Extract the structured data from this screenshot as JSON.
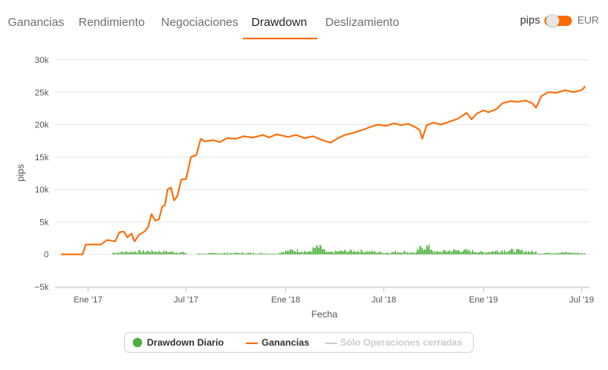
{
  "tabs": [
    {
      "label": "Ganancias",
      "active": false
    },
    {
      "label": "Rendimiento",
      "active": false
    },
    {
      "label": "Negociaciones",
      "active": false
    },
    {
      "label": "Drawdown",
      "active": true
    },
    {
      "label": "Deslizamiento",
      "active": false
    }
  ],
  "unit_toggle": {
    "left_label": "pips",
    "right_label": "EUR",
    "state": "on"
  },
  "colors": {
    "accent": "#ff6a00",
    "gains_line": "#ff6a00",
    "drawdown_bars": "#4caf3b",
    "closed_ops_line": "#cccccc",
    "grid": "#e6e6e6"
  },
  "legend": {
    "items": [
      {
        "label": "Drawdown Diario",
        "symbol": "dot",
        "color": "#4caf3b",
        "visible": true
      },
      {
        "label": "Ganancias",
        "symbol": "line",
        "color": "#ff6a00",
        "visible": true
      },
      {
        "label": "Sólo Operaciones cerradas",
        "symbol": "line",
        "color": "#cccccc",
        "visible": false
      }
    ]
  },
  "chart_data": {
    "type": "line",
    "title": "",
    "xlabel": "Fecha",
    "ylabel": "pips",
    "xlim": [
      "2016-11-01",
      "2019-07-15"
    ],
    "ylim": [
      -5000,
      30000
    ],
    "y_ticks": [
      -5000,
      0,
      5000,
      10000,
      15000,
      20000,
      25000,
      30000
    ],
    "y_tick_labels": [
      "−5k",
      "0",
      "5k",
      "10k",
      "15k",
      "20k",
      "25k",
      "30k"
    ],
    "x_ticks": [
      {
        "date": "2017-01-01",
        "label": "Ene '17"
      },
      {
        "date": "2017-07-01",
        "label": "Jul '17"
      },
      {
        "date": "2018-01-01",
        "label": "Ene '18"
      },
      {
        "date": "2018-07-01",
        "label": "Jul '18"
      },
      {
        "date": "2019-01-01",
        "label": "Ene '19"
      },
      {
        "date": "2019-07-01",
        "label": "Jul '19"
      }
    ],
    "grid": true,
    "legend_position": "bottom",
    "series": [
      {
        "name": "Ganancias",
        "type": "line",
        "points": [
          [
            "2016-11-12",
            0
          ],
          [
            "2016-12-01",
            0
          ],
          [
            "2016-12-22",
            0
          ],
          [
            "2016-12-28",
            1500
          ],
          [
            "2017-01-15",
            1500
          ],
          [
            "2017-01-25",
            1500
          ],
          [
            "2017-02-05",
            2200
          ],
          [
            "2017-02-20",
            2000
          ],
          [
            "2017-02-28",
            3400
          ],
          [
            "2017-03-08",
            3500
          ],
          [
            "2017-03-15",
            2600
          ],
          [
            "2017-03-22",
            3200
          ],
          [
            "2017-03-28",
            2000
          ],
          [
            "2017-04-05",
            3000
          ],
          [
            "2017-04-15",
            3500
          ],
          [
            "2017-04-22",
            4200
          ],
          [
            "2017-04-28",
            6200
          ],
          [
            "2017-05-05",
            5200
          ],
          [
            "2017-05-12",
            5400
          ],
          [
            "2017-05-18",
            7400
          ],
          [
            "2017-05-23",
            7600
          ],
          [
            "2017-05-28",
            10000
          ],
          [
            "2017-06-03",
            10300
          ],
          [
            "2017-06-09",
            8300
          ],
          [
            "2017-06-15",
            9000
          ],
          [
            "2017-06-22",
            11500
          ],
          [
            "2017-07-01",
            11600
          ],
          [
            "2017-07-10",
            15000
          ],
          [
            "2017-07-20",
            15300
          ],
          [
            "2017-07-28",
            17800
          ],
          [
            "2017-08-05",
            17400
          ],
          [
            "2017-08-20",
            17600
          ],
          [
            "2017-09-01",
            17300
          ],
          [
            "2017-09-15",
            17900
          ],
          [
            "2017-10-01",
            17800
          ],
          [
            "2017-10-15",
            18200
          ],
          [
            "2017-11-01",
            18000
          ],
          [
            "2017-11-20",
            18400
          ],
          [
            "2017-12-01",
            18000
          ],
          [
            "2017-12-15",
            18500
          ],
          [
            "2018-01-05",
            18100
          ],
          [
            "2018-01-20",
            18400
          ],
          [
            "2018-02-05",
            17900
          ],
          [
            "2018-02-20",
            18200
          ],
          [
            "2018-03-10",
            17600
          ],
          [
            "2018-03-25",
            17200
          ],
          [
            "2018-04-05",
            17800
          ],
          [
            "2018-04-20",
            18400
          ],
          [
            "2018-05-05",
            18700
          ],
          [
            "2018-05-20",
            19100
          ],
          [
            "2018-06-05",
            19600
          ],
          [
            "2018-06-20",
            20000
          ],
          [
            "2018-07-05",
            19800
          ],
          [
            "2018-07-20",
            20200
          ],
          [
            "2018-08-01",
            19900
          ],
          [
            "2018-08-15",
            20100
          ],
          [
            "2018-08-28",
            19600
          ],
          [
            "2018-09-05",
            19200
          ],
          [
            "2018-09-10",
            17800
          ],
          [
            "2018-09-18",
            19900
          ],
          [
            "2018-10-01",
            20300
          ],
          [
            "2018-10-15",
            20000
          ],
          [
            "2018-11-01",
            20500
          ],
          [
            "2018-11-15",
            20900
          ],
          [
            "2018-12-01",
            21800
          ],
          [
            "2018-12-10",
            20800
          ],
          [
            "2018-12-20",
            21700
          ],
          [
            "2019-01-01",
            22200
          ],
          [
            "2019-01-10",
            21900
          ],
          [
            "2019-01-25",
            22400
          ],
          [
            "2019-02-05",
            23300
          ],
          [
            "2019-02-20",
            23600
          ],
          [
            "2019-03-05",
            23500
          ],
          [
            "2019-03-20",
            23700
          ],
          [
            "2019-04-01",
            23300
          ],
          [
            "2019-04-08",
            22600
          ],
          [
            "2019-04-18",
            24400
          ],
          [
            "2019-05-01",
            25000
          ],
          [
            "2019-05-15",
            24900
          ],
          [
            "2019-06-01",
            25300
          ],
          [
            "2019-06-15",
            25000
          ],
          [
            "2019-07-01",
            25300
          ],
          [
            "2019-07-08",
            25900
          ]
        ]
      },
      {
        "name": "Drawdown Diario",
        "type": "bar",
        "segments": [
          {
            "from": "2017-02-15",
            "to": "2017-07-01",
            "max": 700
          },
          {
            "from": "2017-07-20",
            "to": "2017-12-20",
            "max": 300
          },
          {
            "from": "2017-12-20",
            "to": "2018-02-15",
            "max": 900
          },
          {
            "from": "2018-02-15",
            "to": "2018-03-15",
            "max": 1600
          },
          {
            "from": "2018-03-15",
            "to": "2018-06-30",
            "max": 800
          },
          {
            "from": "2018-06-30",
            "to": "2018-08-31",
            "max": 600
          },
          {
            "from": "2018-08-31",
            "to": "2018-09-30",
            "max": 1800
          },
          {
            "from": "2018-09-30",
            "to": "2018-12-31",
            "max": 900
          },
          {
            "from": "2018-12-31",
            "to": "2019-04-10",
            "max": 900
          },
          {
            "from": "2019-04-10",
            "to": "2019-07-08",
            "max": 400
          }
        ]
      }
    ]
  }
}
